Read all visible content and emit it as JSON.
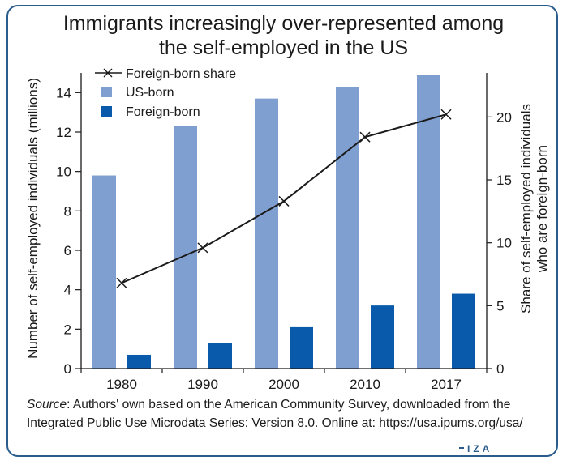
{
  "title_lines": [
    "Immigrants increasingly over-represented among",
    "the self-employed in the US"
  ],
  "source": {
    "label": "Source",
    "text": ": Authors' own based on the American Community Survey, downloaded from the Integrated Public Use Microdata Series: Version 8.0. Online at: https://usa.ipums.org/usa/"
  },
  "logo": "IZA",
  "colors": {
    "us_born": "#7f9fd0",
    "foreign_born": "#0a5aac",
    "line": "#1a1a1a",
    "frame": "#2a5c8c"
  },
  "chart_data": {
    "type": "bar",
    "categories": [
      "1980",
      "1990",
      "2000",
      "2010",
      "2017"
    ],
    "series": [
      {
        "name": "US-born",
        "values": [
          9.8,
          12.3,
          13.7,
          14.3,
          14.9
        ],
        "axis": "left",
        "type": "bar"
      },
      {
        "name": "Foreign-born",
        "values": [
          0.7,
          1.3,
          2.1,
          3.2,
          3.8
        ],
        "axis": "left",
        "type": "bar"
      },
      {
        "name": "Foreign-born share",
        "values": [
          6.8,
          9.6,
          13.3,
          18.4,
          20.2
        ],
        "axis": "right",
        "type": "line"
      }
    ],
    "ylabel": "Number of self-employed individuals (millions)",
    "y2label_lines": [
      "Share of self-employed individuals",
      "who are foreign-born"
    ],
    "ylim": [
      0,
      15
    ],
    "y2lim": [
      0,
      23.5
    ],
    "yticks": [
      0,
      2,
      4,
      6,
      8,
      10,
      12,
      14
    ],
    "y2ticks": [
      0,
      5,
      10,
      15,
      20
    ],
    "legend_order": [
      "Foreign-born share",
      "US-born",
      "Foreign-born"
    ],
    "legend_position": "top-left",
    "grid": false
  }
}
